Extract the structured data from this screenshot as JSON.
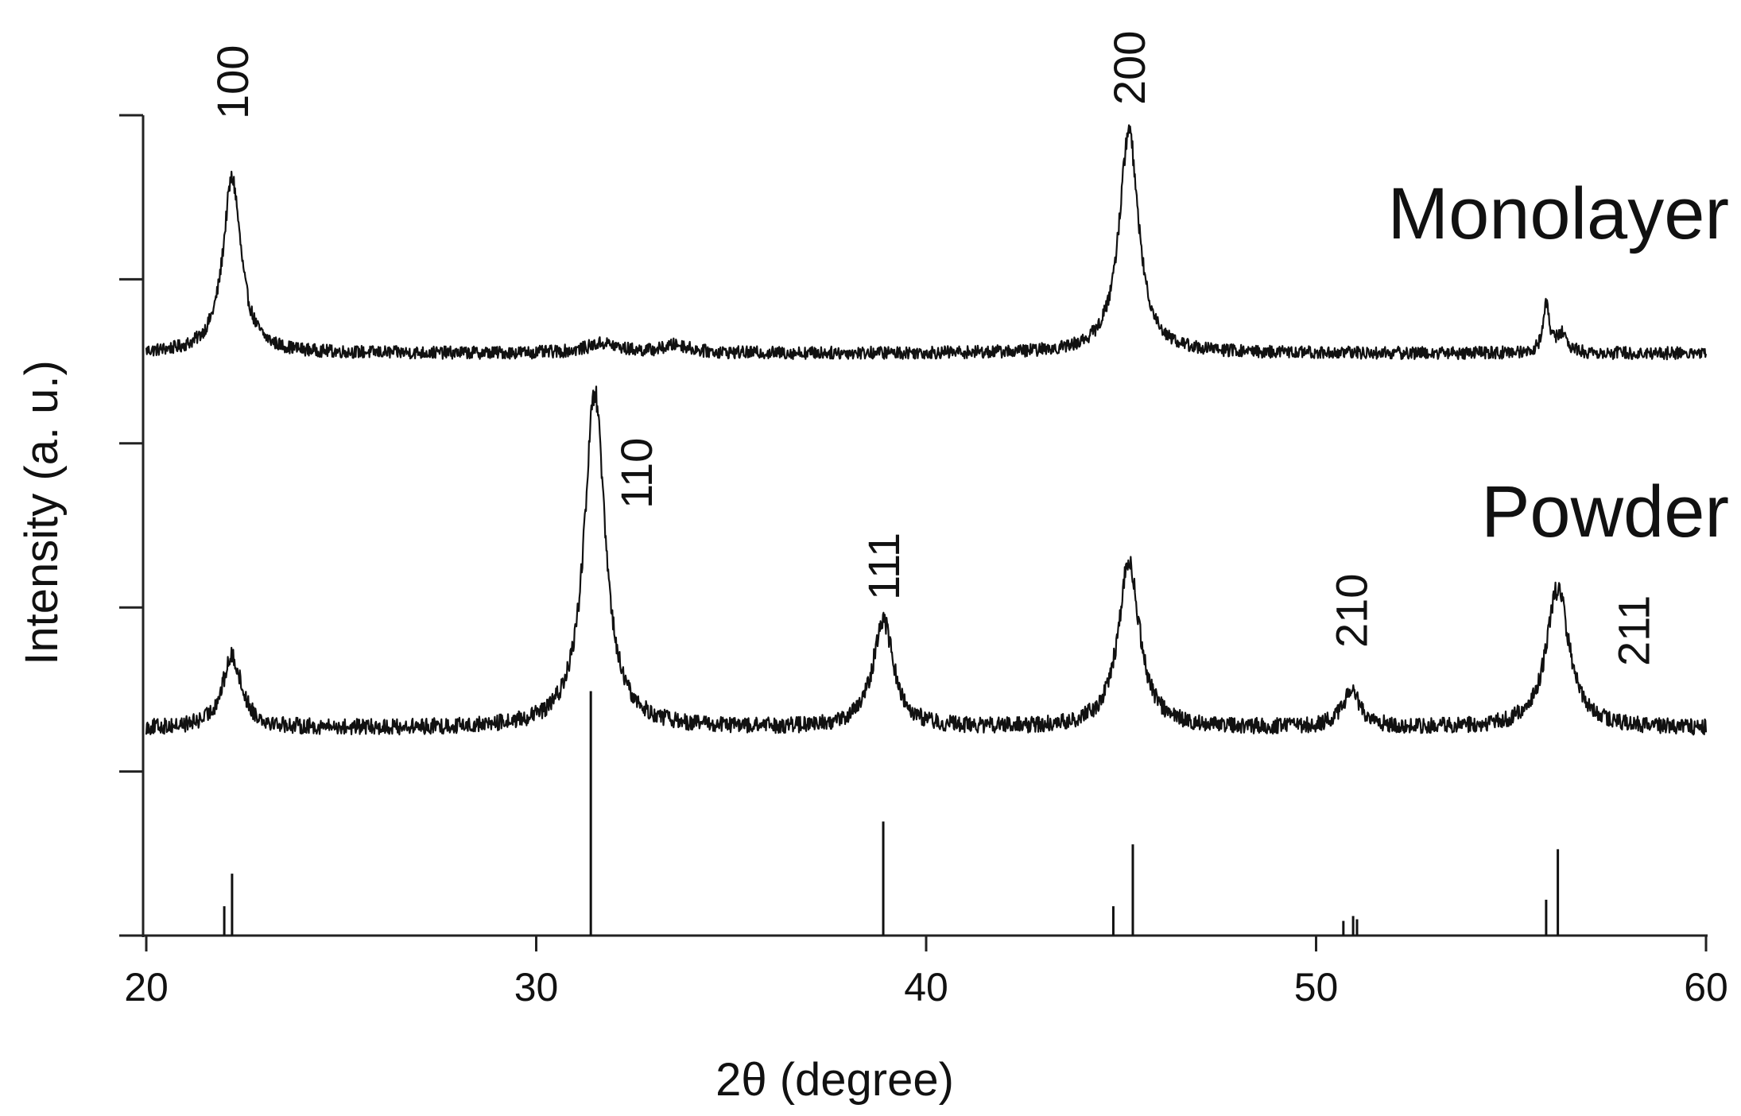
{
  "chart_data": {
    "type": "line",
    "xlabel": "2θ (degree)",
    "ylabel": "Intensity (a. u.)",
    "xlim": [
      20,
      60
    ],
    "x_ticks": [
      20,
      30,
      40,
      50,
      60
    ],
    "y_ticks_unlabeled": 6,
    "grid": false,
    "legend": "none",
    "series": [
      {
        "name": "Monolayer",
        "baseline": 0.15,
        "noise": 0.04,
        "peaks": [
          {
            "x": 22.2,
            "height": 1.1,
            "width": 0.28
          },
          {
            "x": 31.7,
            "height": 0.06,
            "width": 0.5
          },
          {
            "x": 33.6,
            "height": 0.05,
            "width": 0.4
          },
          {
            "x": 45.2,
            "height": 1.4,
            "width": 0.3
          },
          {
            "x": 55.9,
            "height": 0.3,
            "width": 0.1
          },
          {
            "x": 56.3,
            "height": 0.12,
            "width": 0.15
          }
        ]
      },
      {
        "name": "Powder",
        "baseline": 0.15,
        "noise": 0.05,
        "peaks": [
          {
            "x": 22.2,
            "height": 0.45,
            "width": 0.3
          },
          {
            "x": 31.5,
            "height": 2.1,
            "width": 0.32
          },
          {
            "x": 38.9,
            "height": 0.68,
            "width": 0.32
          },
          {
            "x": 45.2,
            "height": 1.05,
            "width": 0.33
          },
          {
            "x": 50.9,
            "height": 0.22,
            "width": 0.3
          },
          {
            "x": 56.2,
            "height": 0.88,
            "width": 0.35
          }
        ]
      }
    ],
    "reference_lines": [
      {
        "x": 22.0,
        "height": 0.18
      },
      {
        "x": 22.2,
        "height": 0.38
      },
      {
        "x": 31.4,
        "height": 1.5
      },
      {
        "x": 38.9,
        "height": 0.7
      },
      {
        "x": 44.8,
        "height": 0.18
      },
      {
        "x": 45.3,
        "height": 0.56
      },
      {
        "x": 50.7,
        "height": 0.09
      },
      {
        "x": 50.95,
        "height": 0.12
      },
      {
        "x": 51.05,
        "height": 0.1
      },
      {
        "x": 55.9,
        "height": 0.22
      },
      {
        "x": 56.2,
        "height": 0.53
      }
    ],
    "peak_labels": [
      {
        "text": "100",
        "x": 22.2
      },
      {
        "text": "200",
        "x": 45.2
      },
      {
        "text": "110",
        "x": 31.5
      },
      {
        "text": "111",
        "x": 38.9
      },
      {
        "text": "210",
        "x": 50.9
      },
      {
        "text": "211",
        "x": 56.2
      }
    ],
    "series_labels": [
      "Monolayer",
      "Powder"
    ]
  }
}
